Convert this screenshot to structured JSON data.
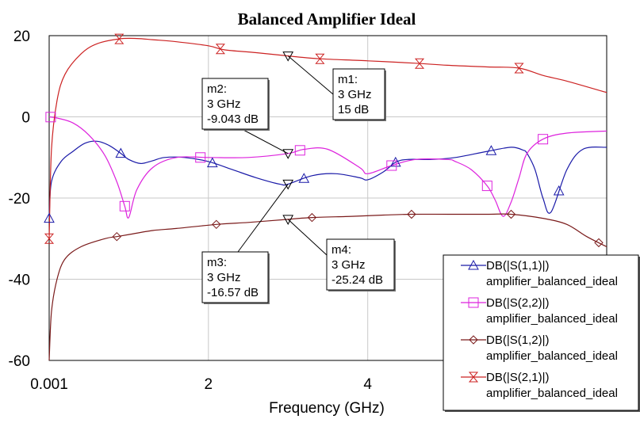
{
  "chart_data": {
    "type": "line",
    "title": "Balanced Amplifier Ideal",
    "xlabel": "Frequency (GHz)",
    "ylabel": "",
    "xlim": [
      0.001,
      7
    ],
    "ylim": [
      -60,
      20
    ],
    "x_ticks": [
      {
        "value": 0.001,
        "label": "0.001"
      },
      {
        "value": 2,
        "label": "2"
      },
      {
        "value": 4,
        "label": "4"
      }
    ],
    "y_ticks": [
      {
        "value": 20,
        "label": "20"
      },
      {
        "value": 0,
        "label": "0"
      },
      {
        "value": -20,
        "label": "-20"
      },
      {
        "value": -40,
        "label": "-40"
      },
      {
        "value": -60,
        "label": "-60"
      }
    ],
    "grid": true,
    "legend_position": "bottom-right",
    "series": [
      {
        "name": "DB(|S(1,1)|)",
        "subname": "amplifier_balanced_ideal",
        "color": "#1a1aa8",
        "marker": "triangle-up",
        "x": [
          0.001,
          0.03,
          0.15,
          0.3,
          0.45,
          0.6,
          0.75,
          0.9,
          1.0,
          1.15,
          1.3,
          1.45,
          1.7,
          2.0,
          2.3,
          2.6,
          2.9,
          3.0,
          3.3,
          3.6,
          3.9,
          4.0,
          4.2,
          4.35,
          4.5,
          4.8,
          5.1,
          5.5,
          5.8,
          5.95,
          6.0,
          6.1,
          6.2,
          6.3,
          6.5,
          6.7,
          7.0
        ],
        "y": [
          -25,
          -16,
          -11,
          -8.5,
          -6.5,
          -6.0,
          -7.0,
          -9.0,
          -10.5,
          -11.5,
          -10.8,
          -10.0,
          -10.0,
          -11.0,
          -13.0,
          -15.0,
          -16.6,
          -16.57,
          -14.5,
          -14.0,
          -15.0,
          -15.5,
          -13.5,
          -11.2,
          -10.5,
          -10.5,
          -10.0,
          -8.5,
          -7.5,
          -8.2,
          -9.0,
          -13.0,
          -20.0,
          -23.5,
          -13.0,
          -8.0,
          -7.5
        ]
      },
      {
        "name": "DB(|S(2,2)|)",
        "subname": "amplifier_balanced_ideal",
        "color": "#dd22dd",
        "marker": "square",
        "x": [
          0.001,
          0.1,
          0.3,
          0.5,
          0.7,
          0.85,
          0.95,
          1.0,
          1.1,
          1.3,
          1.6,
          2.0,
          2.5,
          3.0,
          3.2,
          3.5,
          3.9,
          4.0,
          4.3,
          4.6,
          5.0,
          5.1,
          5.3,
          5.5,
          5.6,
          5.7,
          5.8,
          5.9,
          6.0,
          6.2,
          6.5,
          7.0
        ],
        "y": [
          0,
          -0.3,
          -1.5,
          -4.5,
          -9.5,
          -16.0,
          -22.0,
          -24.8,
          -18.0,
          -12.5,
          -10.0,
          -10.0,
          -10.0,
          -9.04,
          -8.0,
          -8.0,
          -12.5,
          -14.0,
          -12.0,
          -10.5,
          -10.5,
          -11.0,
          -13.0,
          -17.0,
          -20.5,
          -24.5,
          -21.0,
          -15.0,
          -9.0,
          -5.5,
          -4.0,
          -3.5
        ]
      },
      {
        "name": "DB(|S(1,2)|)",
        "subname": "amplifier_balanced_ideal",
        "color": "#7a1a1a",
        "marker": "diamond",
        "x": [
          0.001,
          0.03,
          0.1,
          0.2,
          0.4,
          0.7,
          0.85,
          1.0,
          1.3,
          1.6,
          2.1,
          2.5,
          3.0,
          3.3,
          3.8,
          4.2,
          4.55,
          5.0,
          5.5,
          5.8,
          6.2,
          6.5,
          6.75,
          7.0
        ],
        "y": [
          -60,
          -48,
          -40,
          -35,
          -32,
          -30,
          -29.5,
          -29,
          -28,
          -27.5,
          -26.5,
          -26,
          -25.24,
          -24.8,
          -24.5,
          -24.2,
          -24.0,
          -24.0,
          -24.0,
          -24.0,
          -25.0,
          -26.5,
          -29.5,
          -32
        ]
      },
      {
        "name": "DB(|S(2,1)|)",
        "subname": "amplifier_balanced_ideal",
        "color": "#cc2222",
        "marker": "hourglass",
        "x": [
          0.001,
          0.03,
          0.1,
          0.2,
          0.4,
          0.6,
          0.88,
          1.1,
          1.3,
          1.6,
          2.0,
          2.2,
          2.6,
          3.0,
          3.4,
          4.0,
          4.6,
          5.0,
          5.5,
          5.9,
          6.2,
          6.5,
          7.0
        ],
        "y": [
          -30,
          -8,
          4,
          10.5,
          15.5,
          18,
          19.2,
          19.3,
          19.0,
          18.5,
          17.5,
          16.5,
          15.8,
          15,
          14.3,
          13.8,
          13.2,
          12.7,
          12.3,
          12.0,
          10.2,
          8.8,
          6.0
        ]
      }
    ],
    "markers": [
      {
        "id": "m1",
        "label": "m1:",
        "freq": "3 GHz",
        "value": "15 dB",
        "x": 3,
        "y": 15
      },
      {
        "id": "m2",
        "label": "m2:",
        "freq": "3 GHz",
        "value": "-9.043 dB",
        "x": 3,
        "y": -9.043
      },
      {
        "id": "m3",
        "label": "m3:",
        "freq": "3 GHz",
        "value": "-16.57 dB",
        "x": 3,
        "y": -16.57
      },
      {
        "id": "m4",
        "label": "m4:",
        "freq": "3 GHz",
        "value": "-25.24 dB",
        "x": 3,
        "y": -25.24
      }
    ],
    "marker_symbol_x": {
      "DB(|S(1,1)|)": [
        0.001,
        0.9,
        2.05,
        3.2,
        4.35,
        5.55,
        6.4
      ],
      "DB(|S(2,2)|)": [
        0.02,
        0.95,
        1.9,
        3.15,
        4.3,
        5.5,
        6.2
      ],
      "DB(|S(1,2)|)": [
        0.85,
        2.1,
        3.3,
        4.55,
        5.8,
        6.9
      ],
      "DB(|S(2,1)|)": [
        0.001,
        0.88,
        2.15,
        3.4,
        4.65,
        5.9
      ]
    }
  }
}
